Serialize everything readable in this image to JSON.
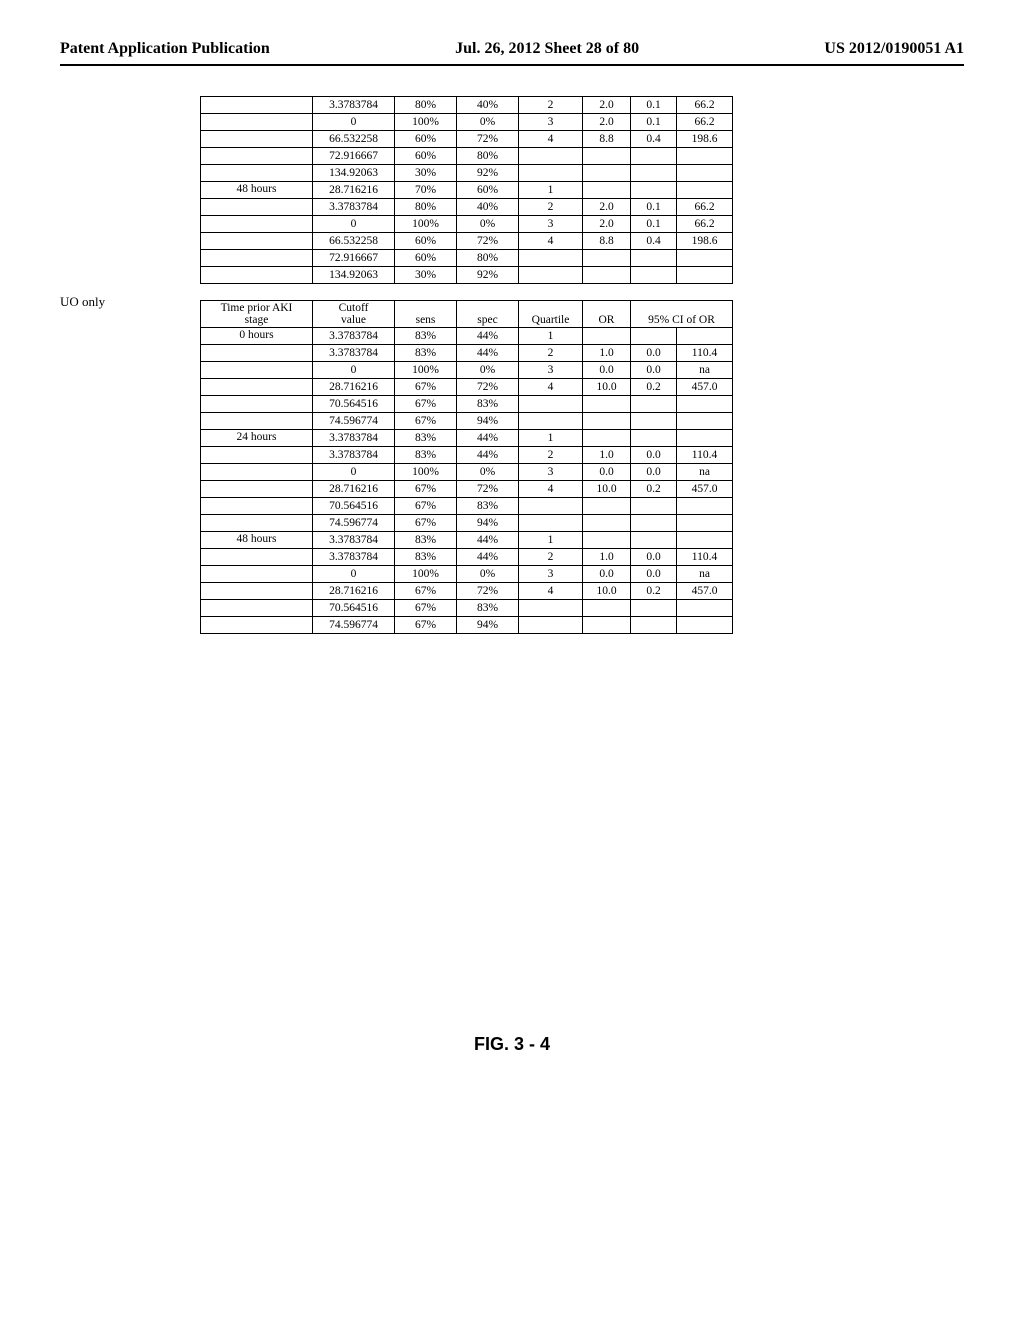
{
  "header": {
    "left": "Patent Application Publication",
    "center": "Jul. 26, 2012  Sheet 28 of 80",
    "right": "US 2012/0190051 A1"
  },
  "section_label_uo": "UO only",
  "figure_label": "FIG. 3 - 4",
  "table1": {
    "rows": [
      {
        "time": "",
        "cutoff": "3.3783784",
        "sens": "80%",
        "spec": "40%",
        "q": "2",
        "or": "2.0",
        "ci_lo": "0.1",
        "ci_hi": "66.2"
      },
      {
        "time": "",
        "cutoff": "0",
        "sens": "100%",
        "spec": "0%",
        "q": "3",
        "or": "2.0",
        "ci_lo": "0.1",
        "ci_hi": "66.2"
      },
      {
        "time": "",
        "cutoff": "66.532258",
        "sens": "60%",
        "spec": "72%",
        "q": "4",
        "or": "8.8",
        "ci_lo": "0.4",
        "ci_hi": "198.6"
      },
      {
        "time": "",
        "cutoff": "72.916667",
        "sens": "60%",
        "spec": "80%",
        "q": "",
        "or": "",
        "ci_lo": "",
        "ci_hi": ""
      },
      {
        "time": "",
        "cutoff": "134.92063",
        "sens": "30%",
        "spec": "92%",
        "q": "",
        "or": "",
        "ci_lo": "",
        "ci_hi": ""
      },
      {
        "time": "48 hours",
        "cutoff": "28.716216",
        "sens": "70%",
        "spec": "60%",
        "q": "1",
        "or": "",
        "ci_lo": "",
        "ci_hi": ""
      },
      {
        "time": "",
        "cutoff": "3.3783784",
        "sens": "80%",
        "spec": "40%",
        "q": "2",
        "or": "2.0",
        "ci_lo": "0.1",
        "ci_hi": "66.2"
      },
      {
        "time": "",
        "cutoff": "0",
        "sens": "100%",
        "spec": "0%",
        "q": "3",
        "or": "2.0",
        "ci_lo": "0.1",
        "ci_hi": "66.2"
      },
      {
        "time": "",
        "cutoff": "66.532258",
        "sens": "60%",
        "spec": "72%",
        "q": "4",
        "or": "8.8",
        "ci_lo": "0.4",
        "ci_hi": "198.6"
      },
      {
        "time": "",
        "cutoff": "72.916667",
        "sens": "60%",
        "spec": "80%",
        "q": "",
        "or": "",
        "ci_lo": "",
        "ci_hi": ""
      },
      {
        "time": "",
        "cutoff": "134.92063",
        "sens": "30%",
        "spec": "92%",
        "q": "",
        "or": "",
        "ci_lo": "",
        "ci_hi": ""
      }
    ]
  },
  "table2": {
    "headers": {
      "time1": "Time prior AKI",
      "time2": "stage",
      "cutoff1": "Cutoff",
      "cutoff2": "value",
      "sens": "sens",
      "spec": "spec",
      "quartile": "Quartile",
      "or": "OR",
      "ci": "95% CI of OR"
    },
    "rows": [
      {
        "time": "0 hours",
        "cutoff": "3.3783784",
        "sens": "83%",
        "spec": "44%",
        "q": "1",
        "or": "",
        "ci_lo": "",
        "ci_hi": ""
      },
      {
        "time": "",
        "cutoff": "3.3783784",
        "sens": "83%",
        "spec": "44%",
        "q": "2",
        "or": "1.0",
        "ci_lo": "0.0",
        "ci_hi": "110.4"
      },
      {
        "time": "",
        "cutoff": "0",
        "sens": "100%",
        "spec": "0%",
        "q": "3",
        "or": "0.0",
        "ci_lo": "0.0",
        "ci_hi": "na"
      },
      {
        "time": "",
        "cutoff": "28.716216",
        "sens": "67%",
        "spec": "72%",
        "q": "4",
        "or": "10.0",
        "ci_lo": "0.2",
        "ci_hi": "457.0"
      },
      {
        "time": "",
        "cutoff": "70.564516",
        "sens": "67%",
        "spec": "83%",
        "q": "",
        "or": "",
        "ci_lo": "",
        "ci_hi": ""
      },
      {
        "time": "",
        "cutoff": "74.596774",
        "sens": "67%",
        "spec": "94%",
        "q": "",
        "or": "",
        "ci_lo": "",
        "ci_hi": ""
      },
      {
        "time": "24 hours",
        "cutoff": "3.3783784",
        "sens": "83%",
        "spec": "44%",
        "q": "1",
        "or": "",
        "ci_lo": "",
        "ci_hi": ""
      },
      {
        "time": "",
        "cutoff": "3.3783784",
        "sens": "83%",
        "spec": "44%",
        "q": "2",
        "or": "1.0",
        "ci_lo": "0.0",
        "ci_hi": "110.4"
      },
      {
        "time": "",
        "cutoff": "0",
        "sens": "100%",
        "spec": "0%",
        "q": "3",
        "or": "0.0",
        "ci_lo": "0.0",
        "ci_hi": "na"
      },
      {
        "time": "",
        "cutoff": "28.716216",
        "sens": "67%",
        "spec": "72%",
        "q": "4",
        "or": "10.0",
        "ci_lo": "0.2",
        "ci_hi": "457.0"
      },
      {
        "time": "",
        "cutoff": "70.564516",
        "sens": "67%",
        "spec": "83%",
        "q": "",
        "or": "",
        "ci_lo": "",
        "ci_hi": ""
      },
      {
        "time": "",
        "cutoff": "74.596774",
        "sens": "67%",
        "spec": "94%",
        "q": "",
        "or": "",
        "ci_lo": "",
        "ci_hi": ""
      },
      {
        "time": "48 hours",
        "cutoff": "3.3783784",
        "sens": "83%",
        "spec": "44%",
        "q": "1",
        "or": "",
        "ci_lo": "",
        "ci_hi": ""
      },
      {
        "time": "",
        "cutoff": "3.3783784",
        "sens": "83%",
        "spec": "44%",
        "q": "2",
        "or": "1.0",
        "ci_lo": "0.0",
        "ci_hi": "110.4"
      },
      {
        "time": "",
        "cutoff": "0",
        "sens": "100%",
        "spec": "0%",
        "q": "3",
        "or": "0.0",
        "ci_lo": "0.0",
        "ci_hi": "na"
      },
      {
        "time": "",
        "cutoff": "28.716216",
        "sens": "67%",
        "spec": "72%",
        "q": "4",
        "or": "10.0",
        "ci_lo": "0.2",
        "ci_hi": "457.0"
      },
      {
        "time": "",
        "cutoff": "70.564516",
        "sens": "67%",
        "spec": "83%",
        "q": "",
        "or": "",
        "ci_lo": "",
        "ci_hi": ""
      },
      {
        "time": "",
        "cutoff": "74.596774",
        "sens": "67%",
        "spec": "94%",
        "q": "",
        "or": "",
        "ci_lo": "",
        "ci_hi": ""
      }
    ]
  }
}
